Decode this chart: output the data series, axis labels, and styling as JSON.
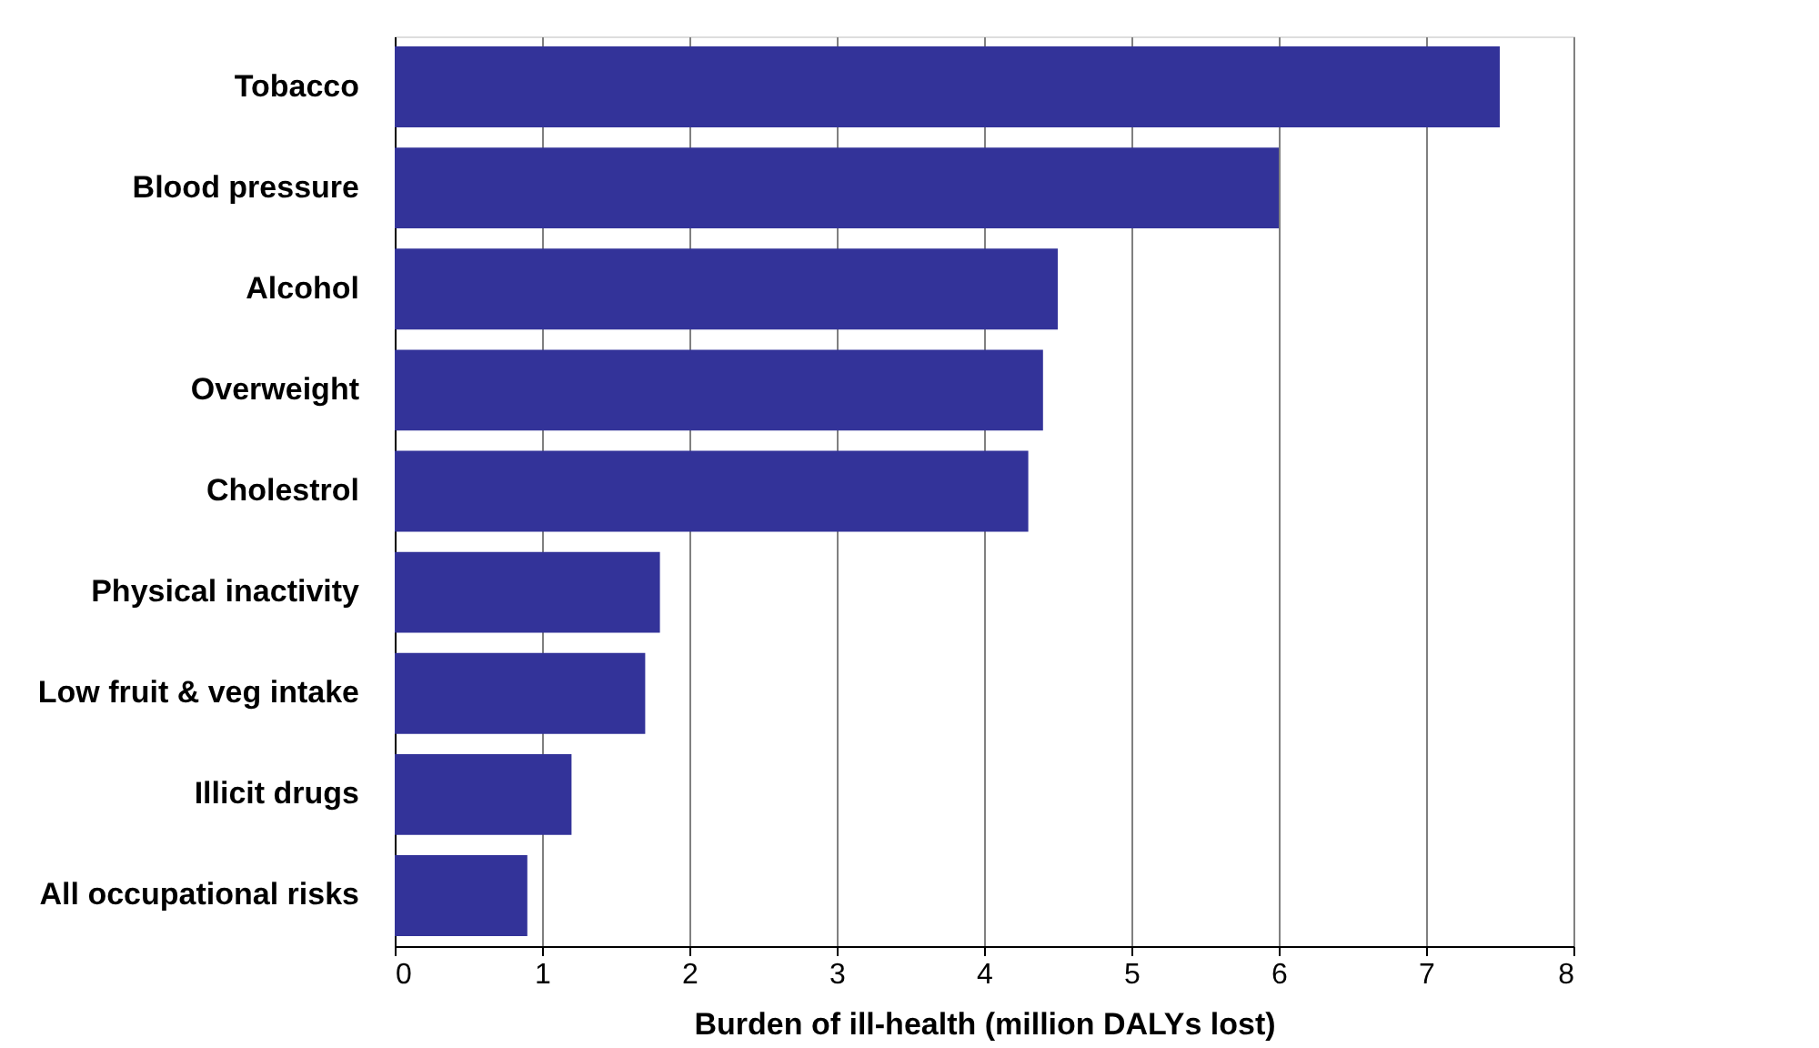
{
  "chart_data": {
    "type": "bar",
    "orientation": "horizontal",
    "categories": [
      "Tobacco",
      "Blood pressure",
      "Alcohol",
      "Overweight",
      "Cholestrol",
      "Physical inactivity",
      "Low fruit & veg intake",
      "Illicit drugs",
      "All occupational risks"
    ],
    "values": [
      7.5,
      6.0,
      4.5,
      4.4,
      4.3,
      1.8,
      1.7,
      1.2,
      0.9
    ],
    "color": "#333399",
    "xlabel": "Burden of ill-health (million DALYs lost)",
    "xlim": [
      0,
      8
    ],
    "xticks": [
      0,
      1,
      2,
      3,
      4,
      5,
      6,
      7,
      8
    ],
    "grid": "x"
  }
}
